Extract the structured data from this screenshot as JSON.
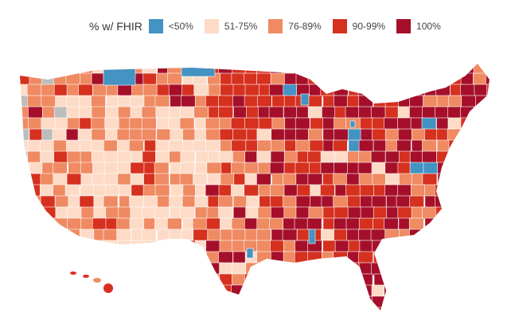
{
  "legend": {
    "title": "% w/ FHIR",
    "items": [
      {
        "label": "<50%",
        "color": "#4393c3"
      },
      {
        "label": "51-75%",
        "color": "#fddbc7"
      },
      {
        "label": "76-89%",
        "color": "#ef8a62"
      },
      {
        "label": "90-99%",
        "color": "#d6301f"
      },
      {
        "label": "100%",
        "color": "#a50f2a"
      }
    ]
  },
  "map": {
    "no_data_color": "#bdbdbd",
    "region_border_color": "#ffffff"
  }
}
